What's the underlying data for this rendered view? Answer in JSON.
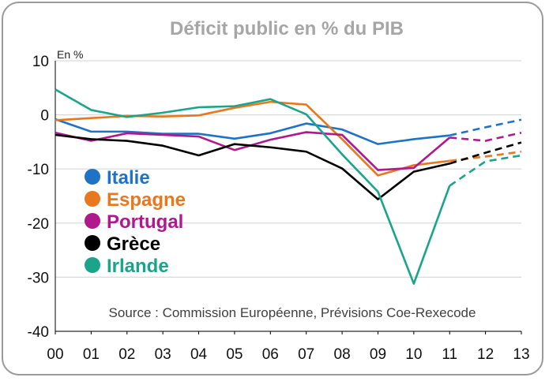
{
  "chart_data": {
    "type": "line",
    "title": "Déficit public en % du PIB",
    "ylabel": "En %",
    "xlabel": "",
    "categories": [
      "00",
      "01",
      "02",
      "03",
      "04",
      "05",
      "06",
      "07",
      "08",
      "09",
      "10",
      "11",
      "12",
      "13"
    ],
    "ylim": [
      -40,
      10
    ],
    "yticks": [
      10,
      0,
      -10,
      -20,
      -30,
      -40
    ],
    "grid": "y",
    "legend_position": "left",
    "forecast_from_index": 11,
    "source": "Source : Commission Européenne, Prévisions Coe-Rexecode",
    "series": [
      {
        "name": "Italie",
        "color": "#1f73c7",
        "values": [
          -0.8,
          -3.1,
          -3.1,
          -3.5,
          -3.5,
          -4.4,
          -3.4,
          -1.6,
          -2.7,
          -5.4,
          -4.5,
          -3.8,
          -2.3,
          -0.9
        ]
      },
      {
        "name": "Espagne",
        "color": "#e8771e",
        "values": [
          -1.0,
          -0.6,
          -0.2,
          -0.3,
          -0.1,
          1.3,
          2.4,
          1.9,
          -4.5,
          -11.2,
          -9.3,
          -8.5,
          -7.7,
          -6.8
        ]
      },
      {
        "name": "Portugal",
        "color": "#b0198d",
        "values": [
          -3.3,
          -4.8,
          -3.4,
          -3.7,
          -4.0,
          -6.5,
          -4.6,
          -3.2,
          -3.7,
          -10.2,
          -9.8,
          -4.2,
          -4.8,
          -3.3
        ]
      },
      {
        "name": "Grèce",
        "color": "#000000",
        "values": [
          -3.7,
          -4.5,
          -4.8,
          -5.7,
          -7.5,
          -5.4,
          -6.0,
          -6.8,
          -9.9,
          -15.6,
          -10.5,
          -9.0,
          -7.0,
          -5.1
        ]
      },
      {
        "name": "Irlande",
        "color": "#1aa58b",
        "values": [
          4.7,
          0.9,
          -0.4,
          0.4,
          1.4,
          1.6,
          2.9,
          0.1,
          -7.3,
          -14.2,
          -31.2,
          -13.1,
          -8.6,
          -7.5
        ]
      }
    ]
  }
}
